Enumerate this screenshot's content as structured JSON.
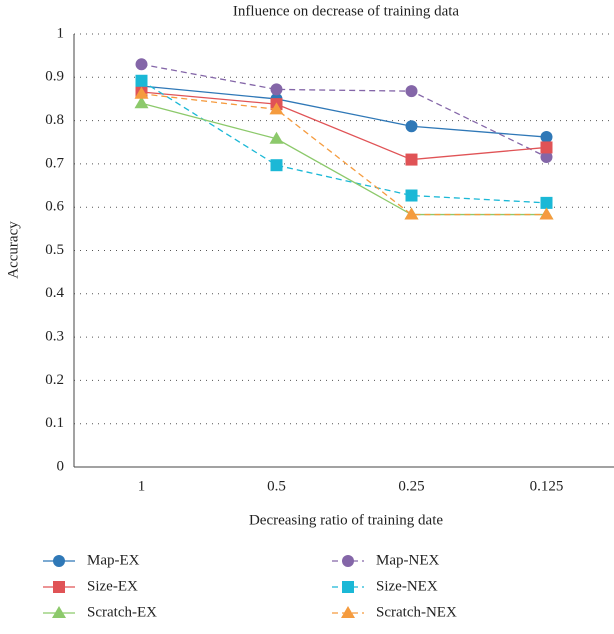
{
  "chart_data": {
    "type": "line",
    "title": "Influence on decrease of training data",
    "x_label": "Decreasing ratio of training date",
    "y_label": "Accuracy",
    "categories": [
      "1",
      "0.5",
      "0.25",
      "0.125"
    ],
    "ylim": [
      0,
      1
    ],
    "yticks": [
      0,
      0.1,
      0.2,
      0.3,
      0.4,
      0.5,
      0.6,
      0.7,
      0.8,
      0.9,
      1
    ],
    "grid": true,
    "legend": "bottom",
    "series": [
      {
        "name": "Map-EX",
        "color": "#2f78b7",
        "marker": "circle",
        "dashed": false,
        "values": [
          0.88,
          0.85,
          0.787,
          0.762
        ]
      },
      {
        "name": "Map-NEX",
        "color": "#8466a8",
        "marker": "circle",
        "dashed": true,
        "values": [
          0.93,
          0.872,
          0.868,
          0.716
        ]
      },
      {
        "name": "Size-EX",
        "color": "#e05356",
        "marker": "square",
        "dashed": false,
        "values": [
          0.866,
          0.838,
          0.71,
          0.738
        ]
      },
      {
        "name": "Size-NEX",
        "color": "#1bb8d6",
        "marker": "square",
        "dashed": true,
        "values": [
          0.892,
          0.697,
          0.627,
          0.61
        ]
      },
      {
        "name": "Scratch-EX",
        "color": "#8cc96b",
        "marker": "triangle",
        "dashed": false,
        "values": [
          0.84,
          0.758,
          0.583,
          0.583
        ]
      },
      {
        "name": "Scratch-NEX",
        "color": "#f59b3e",
        "marker": "triangle",
        "dashed": true,
        "values": [
          0.862,
          0.826,
          0.583,
          0.583
        ]
      }
    ]
  }
}
